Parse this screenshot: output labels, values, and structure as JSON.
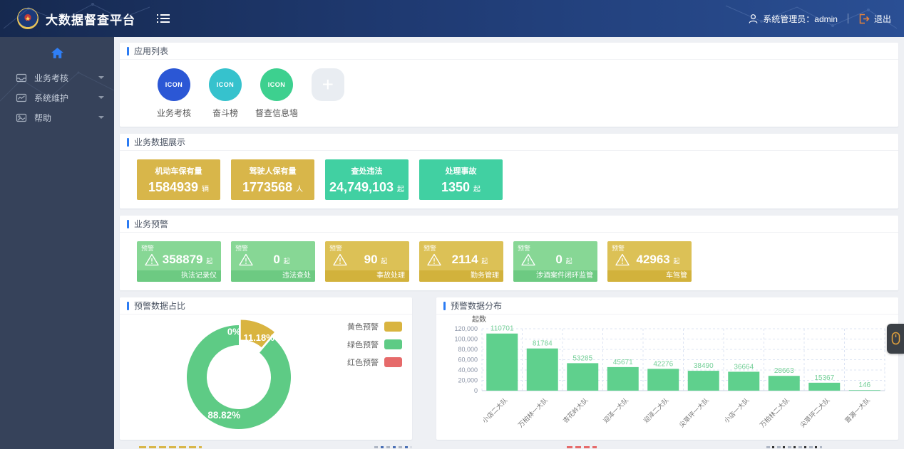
{
  "header": {
    "title": "大数据督查平台",
    "user_label": "系统管理员：admin",
    "logout_label": "退出"
  },
  "sidebar": {
    "items": [
      {
        "label": "业务考核",
        "icon": "inbox-icon"
      },
      {
        "label": "系统维护",
        "icon": "monitor-chart-icon"
      },
      {
        "label": "帮助",
        "icon": "image-icon"
      }
    ]
  },
  "sections": {
    "apps": {
      "title": "应用列表",
      "items": [
        {
          "label": "业务考核",
          "icon_text": "ICON",
          "color": "#2b57d5"
        },
        {
          "label": "奋斗榜",
          "icon_text": "ICON",
          "color": "#36c2cd"
        },
        {
          "label": "督查信息墙",
          "icon_text": "ICON",
          "color": "#3dd08f"
        },
        {
          "label": "",
          "icon_text": "+",
          "color": "#e9edf2"
        }
      ]
    },
    "stats": {
      "title": "业务数据展示",
      "cards": [
        {
          "title": "机动车保有量",
          "value": "1584939",
          "unit": "辆",
          "color": "#d8b64a"
        },
        {
          "title": "驾驶人保有量",
          "value": "1773568",
          "unit": "人",
          "color": "#d8b64a"
        },
        {
          "title": "查处违法",
          "value": "24,749,103",
          "unit": "起",
          "color": "#41d0a2"
        },
        {
          "title": "处理事故",
          "value": "1350",
          "unit": "起",
          "color": "#41d0a2"
        }
      ]
    },
    "warnings": {
      "title": "业务预警",
      "tag": "预警",
      "cards": [
        {
          "value": "358879",
          "unit": "起",
          "category": "执法记录仪",
          "level": "green"
        },
        {
          "value": "0",
          "unit": "起",
          "category": "违法查处",
          "level": "green"
        },
        {
          "value": "90",
          "unit": "起",
          "category": "事故处理",
          "level": "gold"
        },
        {
          "value": "2114",
          "unit": "起",
          "category": "勤务管理",
          "level": "gold"
        },
        {
          "value": "0",
          "unit": "起",
          "category": "涉酒案件闭环监管",
          "level": "green"
        },
        {
          "value": "42963",
          "unit": "起",
          "category": "车驾管",
          "level": "gold"
        }
      ]
    },
    "donut": {
      "title": "预警数据占比"
    },
    "bars": {
      "title": "预警数据分布"
    }
  },
  "chart_data": [
    {
      "type": "pie",
      "title": "预警数据占比",
      "labels": [
        "黄色预警",
        "绿色预警",
        "红色预警"
      ],
      "values": [
        11.18,
        88.82,
        0
      ],
      "value_labels": [
        "11.18%",
        "88.82%",
        "0%"
      ],
      "colors": [
        "#d9b440",
        "#5ecb85",
        "#e66a6a"
      ],
      "legend_position": "top-right",
      "inner_radius_ratio": 0.62
    },
    {
      "type": "bar",
      "title": "预警数据分布",
      "ylabel": "起数",
      "categories": [
        "小店二大队",
        "万柏林一大队",
        "杏花岭大队",
        "迎泽一大队",
        "迎泽二大队",
        "尖草坪一大队",
        "小店一大队",
        "万柏林二大队",
        "尖草坪二大队",
        "晋源一大队"
      ],
      "values": [
        110701,
        81784,
        53285,
        45671,
        42276,
        38490,
        36664,
        28663,
        15367,
        146
      ],
      "ylim": [
        0,
        120000
      ],
      "ytick_step": 20000,
      "yticks": [
        "0",
        "20,000",
        "40,000",
        "60,000",
        "80,000",
        "100,000",
        "120,000"
      ],
      "bar_color": "#5fd08d",
      "value_label_color": "#74cf97",
      "grid": true
    }
  ],
  "colors": {
    "accent_blue": "#2b7bf3",
    "home_icon_blue": "#2f7ff7",
    "logout_orange": "#e8833a",
    "warn_green": {
      "body": "#87d795",
      "footer": "#6dca82"
    },
    "warn_gold": {
      "body": "#dcc156",
      "footer": "#d2b23c"
    }
  },
  "icons": {
    "floating": "mouse-icon",
    "header_left": "list-icon",
    "header_right": [
      "user-icon",
      "logout-icon"
    ],
    "warning_card": "warning-triangle-icon"
  }
}
